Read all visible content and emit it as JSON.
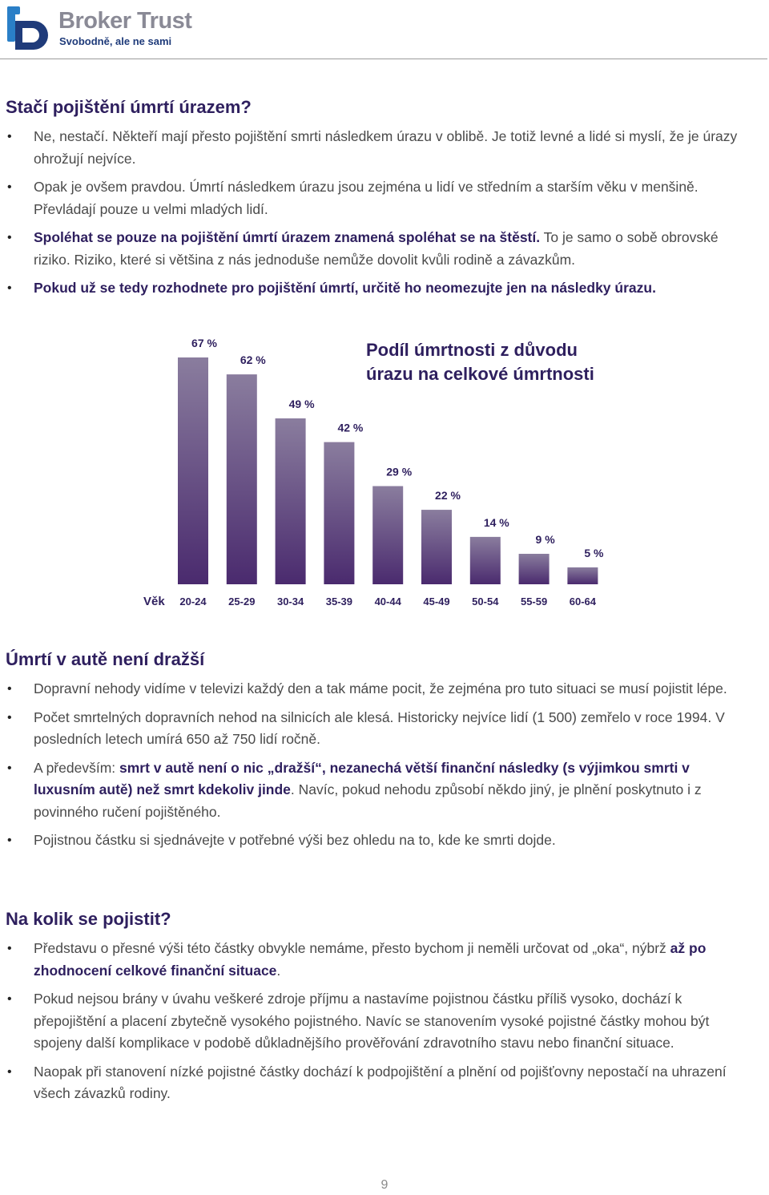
{
  "header": {
    "brand_name": "Broker Trust",
    "tagline": "Svobodně, ale ne sami",
    "logo_icon": "broker-trust-logo"
  },
  "section1": {
    "title": "Stačí pojištění úmrtí úrazem?",
    "items": [
      {
        "text": "Ne, nestačí. Někteří mají přesto pojištění smrti následkem úrazu v oblibě. Je totiž levné a lidé si myslí, že je úrazy ohrožují nejvíce."
      },
      {
        "text": "Opak je ovšem pravdou. Úmrtí následkem úrazu jsou zejména u lidí ve středním a starším věku v menšině. Převládají pouze u velmi mladých lidí."
      },
      {
        "bold": "Spoléhat se pouze na pojištění úmrtí úrazem znamená spoléhat se na štěstí.",
        "text": " To je samo o sobě obrovské riziko. Riziko, které si většina z nás jednoduše nemůže dovolit kvůli rodině a závazkům."
      },
      {
        "bold": "Pokud už se tedy rozhodnete pro pojištění úmrtí, určitě ho neomezujte jen na následky úrazu."
      }
    ]
  },
  "chart_data": {
    "type": "bar",
    "title": "Podíl úmrtnosti z důvodu úrazu na celkové úmrtnosti",
    "title_lines": [
      "Podíl úmrtnosti z důvodu",
      "úrazu na celkové úmrtnosti"
    ],
    "xlabel": "Věk",
    "ylabel": "",
    "categories": [
      "20-24",
      "25-29",
      "30-34",
      "35-39",
      "40-44",
      "45-49",
      "50-54",
      "55-59",
      "60-64"
    ],
    "values": [
      67,
      62,
      49,
      42,
      29,
      22,
      14,
      9,
      5
    ],
    "value_labels": [
      "67 %",
      "62 %",
      "49 %",
      "42 %",
      "29 %",
      "22 %",
      "14 %",
      "9 %",
      "5 %"
    ],
    "ylim": [
      0,
      67
    ],
    "grid": false,
    "bar_color_top": "#8a7d9e",
    "bar_color_bottom": "#4a2a6e",
    "title_color": "#2e1f5e"
  },
  "section2": {
    "title": "Úmrtí v autě není dražší",
    "items": [
      {
        "text": "Dopravní nehody vidíme v televizi každý den a tak máme pocit, že zejména pro tuto situaci se musí pojistit lépe."
      },
      {
        "text": "Počet smrtelných dopravních nehod na silnicích ale klesá. Historicky nejvíce lidí (1 500) zemřelo v roce 1994. V posledních letech umírá 650 až 750 lidí ročně."
      },
      {
        "pre": "A především: ",
        "bold": "smrt v autě není o nic „dražší“, nezanechá větší finanční následky (s výjimkou smrti v luxusním autě) než smrt kdekoliv jinde",
        "text": ". Navíc, pokud nehodu způsobí někdo jiný, je plnění poskytnuto i z povinného ručení pojištěného."
      },
      {
        "text": "Pojistnou částku si sjednávejte v potřebné výši bez ohledu na to, kde ke smrti dojde."
      }
    ]
  },
  "section3": {
    "title": "Na kolik se pojistit?",
    "items": [
      {
        "pre": "Představu o přesné výši této částky obvykle nemáme, přesto bychom ji neměli určovat od „oka“, nýbrž ",
        "bold": "až po zhodnocení celkové finanční situace",
        "text": "."
      },
      {
        "text": "Pokud nejsou brány v úvahu veškeré zdroje příjmu a nastavíme pojistnou částku příliš vysoko, dochází k přepojištění a placení zbytečně vysokého pojistného. Navíc se stanovením vysoké pojistné částky mohou být spojeny další komplikace v podobě důkladnějšího prověřování zdravotního stavu nebo finanční situace."
      },
      {
        "text": "Naopak při stanovení nízké pojistné částky dochází k podpojištění a plnění od pojišťovny nepostačí na uhrazení všech závazků rodiny."
      }
    ]
  },
  "page_number": "9"
}
